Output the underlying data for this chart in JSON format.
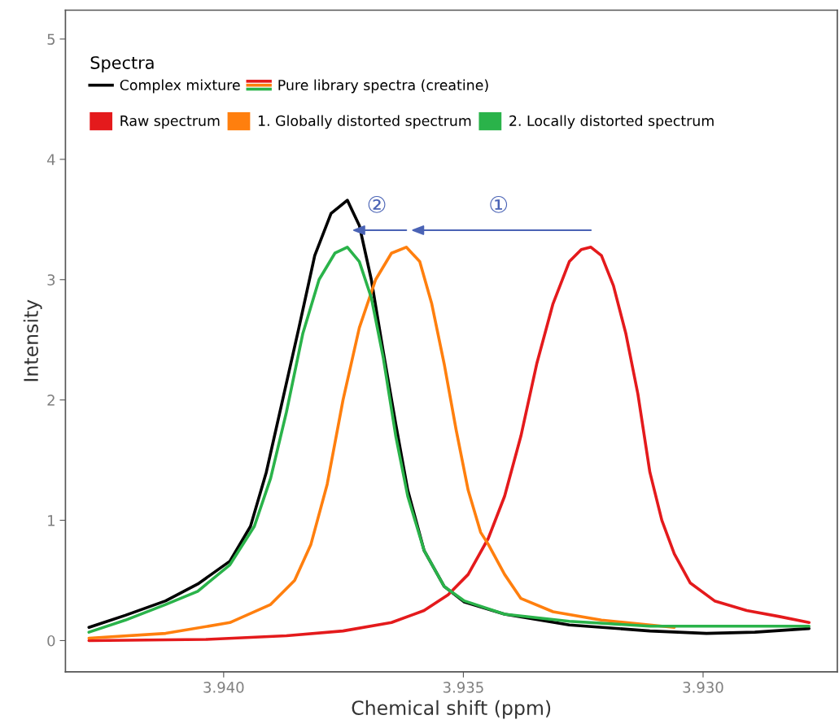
{
  "chart_data": {
    "type": "line",
    "xlabel": "Chemical shift (ppm)",
    "ylabel": "Intensity",
    "legend_title": "Spectra",
    "xlim": [
      3.9433,
      3.9272
    ],
    "ylim": [
      -0.26,
      5.24
    ],
    "xticks": [
      {
        "value": 3.94,
        "label": "3.940"
      },
      {
        "value": 3.935,
        "label": "3.935"
      },
      {
        "value": 3.93,
        "label": "3.930"
      }
    ],
    "yticks": [
      0,
      1,
      2,
      3,
      4,
      5
    ],
    "grid": false,
    "legend": "top left",
    "marker": "none",
    "line_style": "solid",
    "series": [
      {
        "name": "Complex mixture",
        "color": "#000000",
        "x": [
          3.94281,
          3.94205,
          3.94121,
          3.94054,
          3.93987,
          3.93944,
          3.93911,
          3.93877,
          3.93843,
          3.9381,
          3.93776,
          3.93742,
          3.93717,
          3.93692,
          3.93667,
          3.93641,
          3.93616,
          3.93582,
          3.9354,
          3.93498,
          3.93414,
          3.93279,
          3.93111,
          3.92993,
          3.92892,
          3.92779
        ],
        "values": [
          0.11,
          0.21,
          0.33,
          0.47,
          0.66,
          0.95,
          1.4,
          2.0,
          2.6,
          3.2,
          3.55,
          3.66,
          3.45,
          3.0,
          2.4,
          1.8,
          1.25,
          0.75,
          0.45,
          0.32,
          0.22,
          0.13,
          0.08,
          0.06,
          0.07,
          0.1
        ]
      },
      {
        "name": "Raw spectrum",
        "color": "#e41a1c",
        "x": [
          3.94281,
          3.94037,
          3.93869,
          3.93751,
          3.9365,
          3.93582,
          3.93532,
          3.9349,
          3.93448,
          3.93414,
          3.9338,
          3.93347,
          3.93313,
          3.93279,
          3.93254,
          3.93234,
          3.93212,
          3.93187,
          3.93161,
          3.93136,
          3.93111,
          3.93086,
          3.9306,
          3.93027,
          3.92976,
          3.92909,
          3.92841,
          3.92779
        ],
        "values": [
          0.0,
          0.01,
          0.04,
          0.08,
          0.15,
          0.25,
          0.38,
          0.55,
          0.85,
          1.2,
          1.7,
          2.3,
          2.8,
          3.15,
          3.25,
          3.27,
          3.2,
          2.95,
          2.55,
          2.05,
          1.4,
          1.0,
          0.72,
          0.48,
          0.33,
          0.25,
          0.2,
          0.15
        ]
      },
      {
        "name": "1. Globally distorted spectrum",
        "color": "#ff7f0e",
        "x": [
          3.94281,
          3.94121,
          3.93987,
          3.93902,
          3.93852,
          3.93818,
          3.93784,
          3.93751,
          3.93717,
          3.93683,
          3.9365,
          3.93619,
          3.93591,
          3.93566,
          3.9354,
          3.93515,
          3.9349,
          3.93464,
          3.93448,
          3.93414,
          3.9338,
          3.93313,
          3.93212,
          3.93111,
          3.9306
        ],
        "values": [
          0.02,
          0.06,
          0.15,
          0.3,
          0.5,
          0.8,
          1.3,
          2.0,
          2.6,
          3.0,
          3.22,
          3.27,
          3.15,
          2.8,
          2.3,
          1.75,
          1.25,
          0.9,
          0.8,
          0.55,
          0.35,
          0.24,
          0.17,
          0.13,
          0.11
        ]
      },
      {
        "name": "2. Locally distorted spectrum",
        "color": "#2ab34a",
        "x": [
          3.94281,
          3.94205,
          3.94121,
          3.94054,
          3.93987,
          3.93936,
          3.93902,
          3.93869,
          3.93835,
          3.93801,
          3.93768,
          3.93742,
          3.93717,
          3.93692,
          3.93667,
          3.93641,
          3.93616,
          3.93582,
          3.9354,
          3.93498,
          3.93414,
          3.93279,
          3.93111,
          3.92942,
          3.92779
        ],
        "values": [
          0.07,
          0.17,
          0.3,
          0.41,
          0.63,
          0.95,
          1.35,
          1.9,
          2.55,
          3.0,
          3.22,
          3.27,
          3.15,
          2.85,
          2.35,
          1.7,
          1.2,
          0.75,
          0.45,
          0.33,
          0.22,
          0.16,
          0.12,
          0.12,
          0.12
        ]
      }
    ],
    "annotations": [
      "Pure library spectra (creatine)",
      "①",
      "②"
    ]
  }
}
